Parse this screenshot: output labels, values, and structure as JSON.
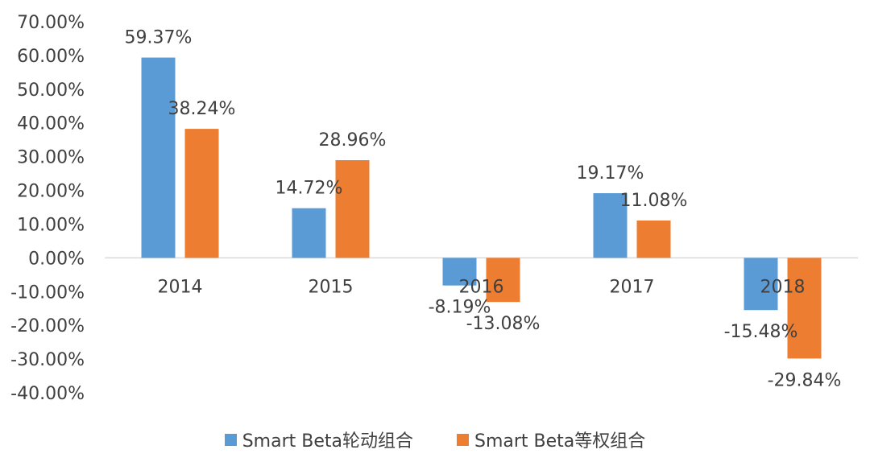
{
  "chart_data": {
    "type": "bar",
    "title": "",
    "xlabel": "",
    "ylabel": "",
    "categories": [
      "2014",
      "2015",
      "2016",
      "2017",
      "2018"
    ],
    "series": [
      {
        "name": "Smart Beta轮动组合",
        "color": "#5b9bd5",
        "values": [
          59.37,
          14.72,
          -8.19,
          19.17,
          -15.48
        ],
        "labels": [
          "59.37%",
          "14.72%",
          "-8.19%",
          "19.17%",
          "-15.48%"
        ]
      },
      {
        "name": "Smart Beta等权组合",
        "color": "#ed7d31",
        "values": [
          38.24,
          28.96,
          -13.08,
          11.08,
          -29.84
        ],
        "labels": [
          "38.24%",
          "28.96%",
          "-13.08%",
          "11.08%",
          "-29.84%"
        ]
      }
    ],
    "ylim": [
      -40,
      70
    ],
    "yticks": [
      70,
      60,
      50,
      40,
      30,
      20,
      10,
      0,
      -10,
      -20,
      -30,
      -40
    ],
    "ytick_labels": [
      "70.00%",
      "60.00%",
      "50.00%",
      "40.00%",
      "30.00%",
      "20.00%",
      "10.00%",
      "0.00%",
      "-10.00%",
      "-20.00%",
      "-30.00%",
      "-40.00%"
    ],
    "grid": false,
    "legend_position": "bottom"
  }
}
